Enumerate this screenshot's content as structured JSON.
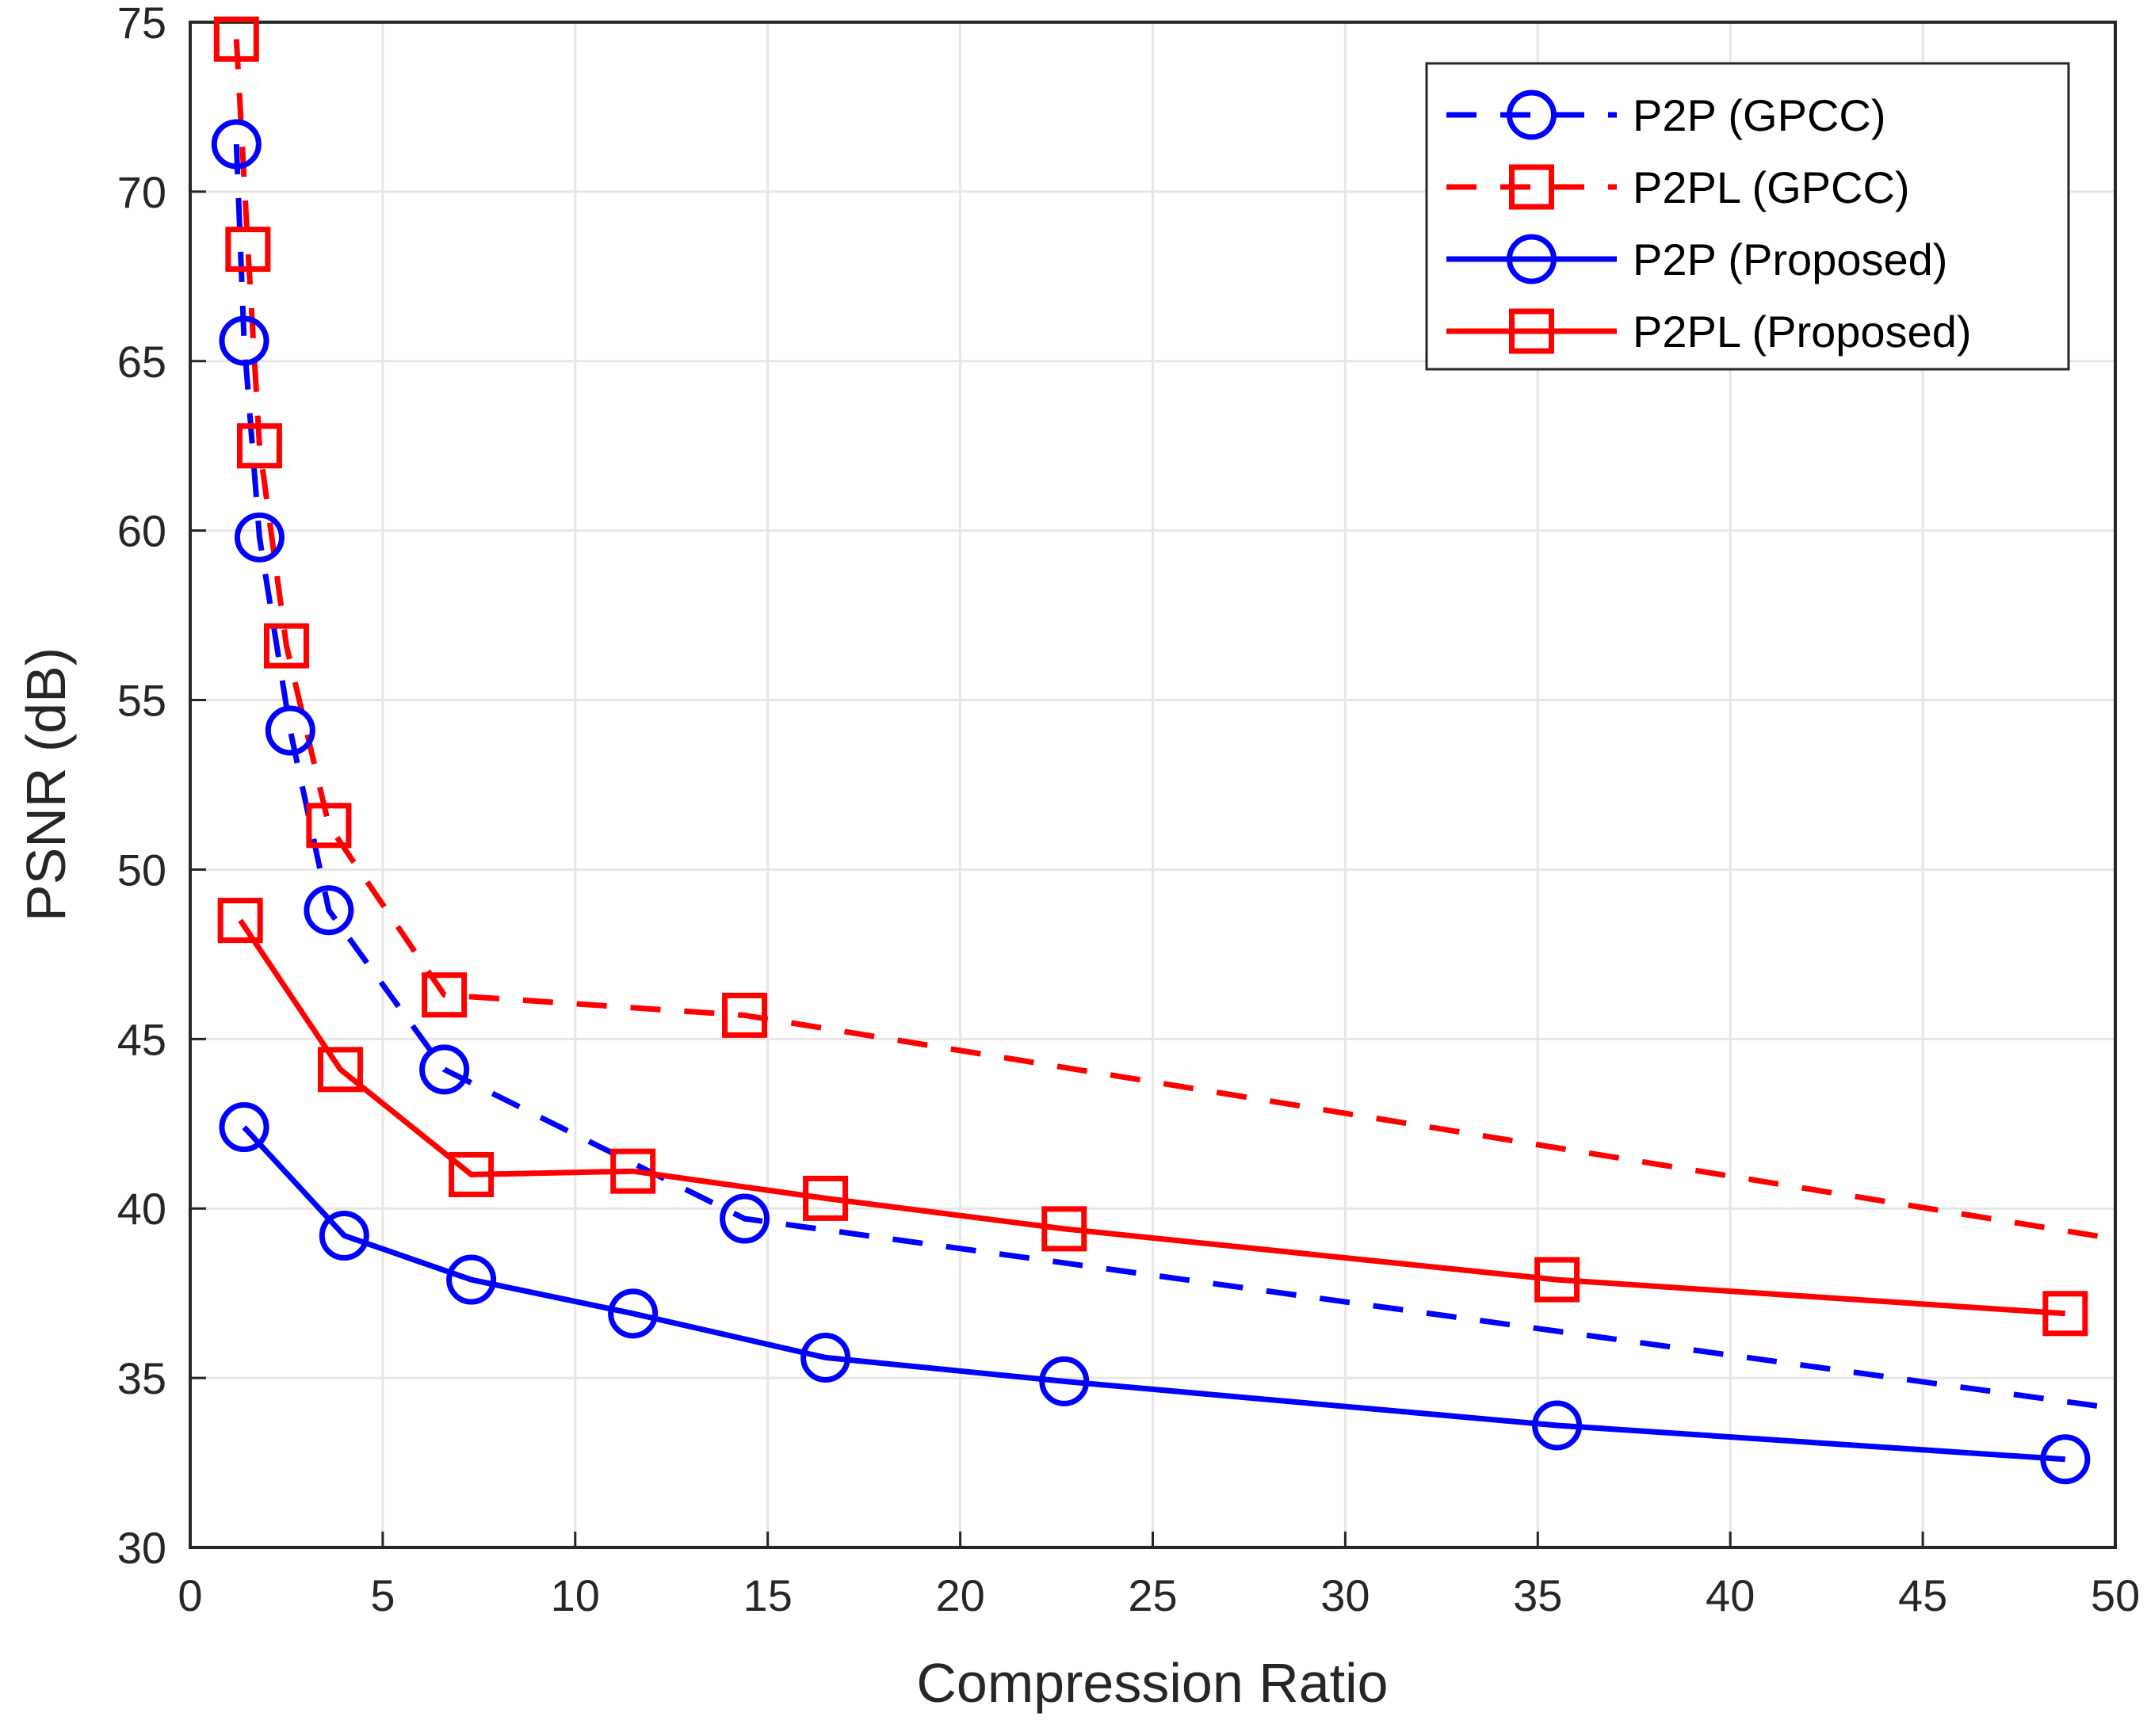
{
  "chart_data": {
    "type": "line",
    "title": "",
    "xlabel": "Compression Ratio",
    "ylabel": "PSNR (dB)",
    "xlim": [
      0,
      50
    ],
    "ylim": [
      30,
      75
    ],
    "xticks": [
      "0",
      "5",
      "10",
      "15",
      "20",
      "25",
      "30",
      "35",
      "40",
      "45",
      "50"
    ],
    "yticks": [
      "30",
      "35",
      "40",
      "45",
      "50",
      "55",
      "60",
      "65",
      "70",
      "75"
    ],
    "grid": true,
    "legend_position": "top-right",
    "series": [
      {
        "name": "P2P (GPCC)",
        "color": "#0000ff",
        "line_style": "dashed",
        "marker": "circle",
        "points": [
          [
            1.2,
            71.4
          ],
          [
            1.4,
            65.6
          ],
          [
            1.8,
            59.8
          ],
          [
            2.6,
            54.1
          ],
          [
            3.6,
            48.8
          ],
          [
            6.6,
            44.1
          ],
          [
            14.4,
            39.7
          ],
          [
            50,
            34.1
          ]
        ],
        "marker_count": 7
      },
      {
        "name": "P2PL (GPCC)",
        "color": "#ff0000",
        "line_style": "dashed",
        "marker": "square",
        "points": [
          [
            1.2,
            74.5
          ],
          [
            1.5,
            68.3
          ],
          [
            1.8,
            62.5
          ],
          [
            2.5,
            56.6
          ],
          [
            3.6,
            51.3
          ],
          [
            6.6,
            46.3
          ],
          [
            14.4,
            45.7
          ],
          [
            50,
            39.1
          ]
        ],
        "marker_count": 7
      },
      {
        "name": "P2P (Proposed)",
        "color": "#0000ff",
        "line_style": "solid",
        "marker": "circle",
        "points": [
          [
            1.4,
            42.4
          ],
          [
            4.0,
            39.2
          ],
          [
            7.3,
            37.9
          ],
          [
            11.5,
            36.9
          ],
          [
            16.5,
            35.6
          ],
          [
            22.7,
            34.9
          ],
          [
            35.5,
            33.6
          ],
          [
            48.7,
            32.6
          ]
        ],
        "marker_count": 8
      },
      {
        "name": "P2PL (Proposed)",
        "color": "#ff0000",
        "line_style": "solid",
        "marker": "square",
        "points": [
          [
            1.3,
            48.5
          ],
          [
            3.9,
            44.1
          ],
          [
            7.3,
            41.0
          ],
          [
            11.5,
            41.1
          ],
          [
            16.5,
            40.3
          ],
          [
            22.7,
            39.4
          ],
          [
            35.5,
            37.9
          ],
          [
            48.7,
            36.9
          ]
        ],
        "marker_count": 8
      }
    ]
  }
}
